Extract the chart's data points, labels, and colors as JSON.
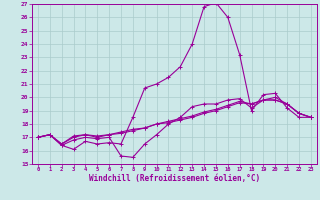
{
  "xlabel": "Windchill (Refroidissement éolien,°C)",
  "xlim_min": -0.5,
  "xlim_max": 23.5,
  "ylim_min": 15,
  "ylim_max": 27,
  "yticks": [
    15,
    16,
    17,
    18,
    19,
    20,
    21,
    22,
    23,
    24,
    25,
    26,
    27
  ],
  "xticks": [
    0,
    1,
    2,
    3,
    4,
    5,
    6,
    7,
    8,
    9,
    10,
    11,
    12,
    13,
    14,
    15,
    16,
    17,
    18,
    19,
    20,
    21,
    22,
    23
  ],
  "line_color": "#990099",
  "bg_color": "#cce8e8",
  "grid_color": "#aacccc",
  "lines": [
    [
      17.0,
      17.2,
      16.4,
      16.1,
      16.7,
      16.5,
      16.6,
      16.5,
      18.5,
      20.7,
      21.0,
      21.5,
      22.3,
      24.0,
      26.8,
      27.1,
      26.0,
      23.2,
      19.0,
      20.2,
      20.3,
      19.2,
      18.5,
      18.5
    ],
    [
      17.0,
      17.2,
      16.4,
      16.8,
      17.0,
      16.9,
      17.0,
      15.6,
      15.5,
      16.5,
      17.2,
      18.0,
      18.5,
      19.3,
      19.5,
      19.5,
      19.8,
      19.9,
      19.2,
      19.8,
      20.0,
      19.5,
      18.8,
      18.5
    ],
    [
      17.0,
      17.2,
      16.5,
      17.0,
      17.2,
      17.0,
      17.2,
      17.3,
      17.5,
      17.7,
      18.0,
      18.1,
      18.3,
      18.5,
      18.8,
      19.0,
      19.3,
      19.6,
      19.5,
      19.8,
      19.8,
      19.5,
      18.8,
      18.5
    ],
    [
      17.0,
      17.2,
      16.5,
      17.1,
      17.2,
      17.1,
      17.2,
      17.4,
      17.6,
      17.7,
      18.0,
      18.2,
      18.4,
      18.6,
      18.9,
      19.1,
      19.4,
      19.7,
      19.5,
      19.8,
      19.8,
      19.5,
      18.8,
      18.5
    ]
  ]
}
